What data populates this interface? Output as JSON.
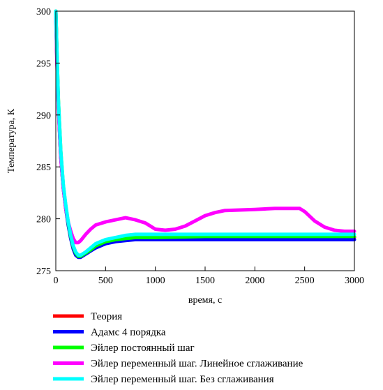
{
  "chart_data": {
    "type": "line",
    "title": "",
    "xlabel": "время, с",
    "ylabel": "Температура, К",
    "xlim": [
      0,
      3000
    ],
    "ylim": [
      275,
      300
    ],
    "xticks": [
      0,
      500,
      1000,
      1500,
      2000,
      2500,
      3000
    ],
    "yticks": [
      275,
      280,
      285,
      290,
      295,
      300
    ],
    "grid": false,
    "legend_position": "bottom",
    "series": [
      {
        "name": "Теория",
        "color": "#ff0000",
        "x": [
          0,
          10,
          25,
          50,
          75,
          100,
          125,
          150,
          175,
          200,
          225,
          250,
          300,
          350,
          400,
          450,
          500,
          600,
          700,
          800,
          900,
          1000,
          1500,
          2000,
          2500,
          3000
        ],
        "y": [
          300,
          296.0,
          291.0,
          286.0,
          283.0,
          281.0,
          279.5,
          278.2,
          277.2,
          276.6,
          276.4,
          276.4,
          276.7,
          277.0,
          277.3,
          277.5,
          277.7,
          277.9,
          278.0,
          278.1,
          278.1,
          278.1,
          278.2,
          278.2,
          278.2,
          278.2
        ]
      },
      {
        "name": "Адамс 4 порядка",
        "color": "#0000ff",
        "x": [
          0,
          10,
          25,
          50,
          75,
          100,
          125,
          150,
          175,
          200,
          225,
          250,
          300,
          350,
          400,
          450,
          500,
          600,
          700,
          800,
          900,
          1000,
          1500,
          2000,
          2500,
          3000
        ],
        "y": [
          300,
          296.0,
          291.0,
          286.0,
          283.0,
          281.0,
          279.4,
          278.1,
          277.1,
          276.5,
          276.3,
          276.3,
          276.6,
          276.9,
          277.2,
          277.4,
          277.6,
          277.8,
          277.9,
          278.0,
          278.0,
          278.0,
          278.0,
          278.0,
          278.0,
          278.0
        ]
      },
      {
        "name": "Эйлер постоянный шаг",
        "color": "#00ff00",
        "x": [
          0,
          10,
          25,
          50,
          75,
          100,
          125,
          150,
          175,
          200,
          225,
          250,
          300,
          350,
          400,
          450,
          500,
          600,
          700,
          800,
          900,
          1000,
          1500,
          2000,
          2500,
          3000
        ],
        "y": [
          300,
          296.5,
          291.5,
          286.5,
          283.2,
          281.2,
          279.6,
          278.3,
          277.3,
          276.7,
          276.4,
          276.4,
          276.7,
          277.0,
          277.4,
          277.6,
          277.8,
          278.0,
          278.1,
          278.2,
          278.2,
          278.2,
          278.3,
          278.3,
          278.3,
          278.3
        ]
      },
      {
        "name": "Эйлер переменный шаг. Линейное сглаживание",
        "color": "#ff00ff",
        "x": [
          0,
          10,
          25,
          50,
          75,
          100,
          125,
          150,
          175,
          200,
          225,
          250,
          300,
          350,
          400,
          500,
          600,
          700,
          800,
          900,
          1000,
          1100,
          1200,
          1300,
          1400,
          1500,
          1600,
          1700,
          2000,
          2200,
          2400,
          2450,
          2500,
          2600,
          2700,
          2800,
          2900,
          3000
        ],
        "y": [
          299.5,
          295.5,
          290.8,
          286.0,
          283.0,
          281.0,
          279.7,
          278.8,
          278.1,
          277.7,
          277.7,
          277.9,
          278.5,
          279.0,
          279.4,
          279.7,
          279.9,
          280.1,
          279.9,
          279.6,
          279.0,
          278.9,
          279.0,
          279.3,
          279.8,
          280.3,
          280.6,
          280.8,
          280.9,
          281.0,
          281.0,
          281.0,
          280.7,
          279.8,
          279.2,
          278.9,
          278.8,
          278.8
        ]
      },
      {
        "name": "Эйлер переменный шаг. Без сглаживания",
        "color": "#00ffff",
        "x": [
          0,
          10,
          25,
          50,
          75,
          100,
          125,
          150,
          175,
          200,
          225,
          250,
          300,
          350,
          400,
          450,
          500,
          600,
          700,
          800,
          900,
          1000,
          1500,
          2000,
          2500,
          3000
        ],
        "y": [
          300,
          296.5,
          291.5,
          286.5,
          283.3,
          281.3,
          279.7,
          278.4,
          277.4,
          276.8,
          276.5,
          276.5,
          276.8,
          277.2,
          277.6,
          277.8,
          278.0,
          278.2,
          278.4,
          278.5,
          278.5,
          278.5,
          278.5,
          278.5,
          278.5,
          278.5
        ]
      }
    ]
  }
}
